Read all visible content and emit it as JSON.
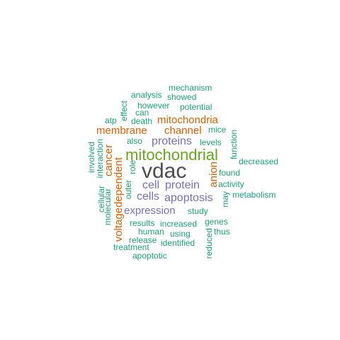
{
  "palette": {
    "gray": "#4d4d4d",
    "green": "#66a61e",
    "orange": "#d95f02",
    "purple": "#7570b3",
    "teal": "#1b9e77"
  },
  "words": [
    {
      "text": "vdac",
      "color": "gray"
    },
    {
      "text": "mitochondrial",
      "color": "green"
    },
    {
      "text": "mitochondria",
      "color": "orange"
    },
    {
      "text": "membrane",
      "color": "orange"
    },
    {
      "text": "channel",
      "color": "orange"
    },
    {
      "text": "voltagedependent",
      "color": "orange"
    },
    {
      "text": "cancer",
      "color": "orange"
    },
    {
      "text": "anion",
      "color": "orange"
    },
    {
      "text": "proteins",
      "color": "purple"
    },
    {
      "text": "cell",
      "color": "purple"
    },
    {
      "text": "protein",
      "color": "purple"
    },
    {
      "text": "cells",
      "color": "purple"
    },
    {
      "text": "apoptosis",
      "color": "purple"
    },
    {
      "text": "expression",
      "color": "purple"
    },
    {
      "text": "mechanism",
      "color": "teal"
    },
    {
      "text": "analysis",
      "color": "teal"
    },
    {
      "text": "showed",
      "color": "teal"
    },
    {
      "text": "however",
      "color": "teal"
    },
    {
      "text": "potential",
      "color": "teal"
    },
    {
      "text": "effect",
      "color": "teal"
    },
    {
      "text": "can",
      "color": "teal"
    },
    {
      "text": "atp",
      "color": "teal"
    },
    {
      "text": "death",
      "color": "teal"
    },
    {
      "text": "mice",
      "color": "teal"
    },
    {
      "text": "function",
      "color": "teal"
    },
    {
      "text": "also",
      "color": "teal"
    },
    {
      "text": "levels",
      "color": "teal"
    },
    {
      "text": "involved",
      "color": "teal"
    },
    {
      "text": "interaction",
      "color": "teal"
    },
    {
      "text": "role",
      "color": "teal"
    },
    {
      "text": "decreased",
      "color": "teal"
    },
    {
      "text": "found",
      "color": "teal"
    },
    {
      "text": "cellular",
      "color": "teal"
    },
    {
      "text": "molecular",
      "color": "teal"
    },
    {
      "text": "outer",
      "color": "teal"
    },
    {
      "text": "activity",
      "color": "teal"
    },
    {
      "text": "may",
      "color": "teal"
    },
    {
      "text": "metabolism",
      "color": "teal"
    },
    {
      "text": "study",
      "color": "teal"
    },
    {
      "text": "results",
      "color": "teal"
    },
    {
      "text": "increased",
      "color": "teal"
    },
    {
      "text": "genes",
      "color": "teal"
    },
    {
      "text": "human",
      "color": "teal"
    },
    {
      "text": "using",
      "color": "teal"
    },
    {
      "text": "thus",
      "color": "teal"
    },
    {
      "text": "release",
      "color": "teal"
    },
    {
      "text": "identified",
      "color": "teal"
    },
    {
      "text": "reduced",
      "color": "teal"
    },
    {
      "text": "treatment",
      "color": "teal"
    },
    {
      "text": "apoptotic",
      "color": "teal"
    }
  ]
}
